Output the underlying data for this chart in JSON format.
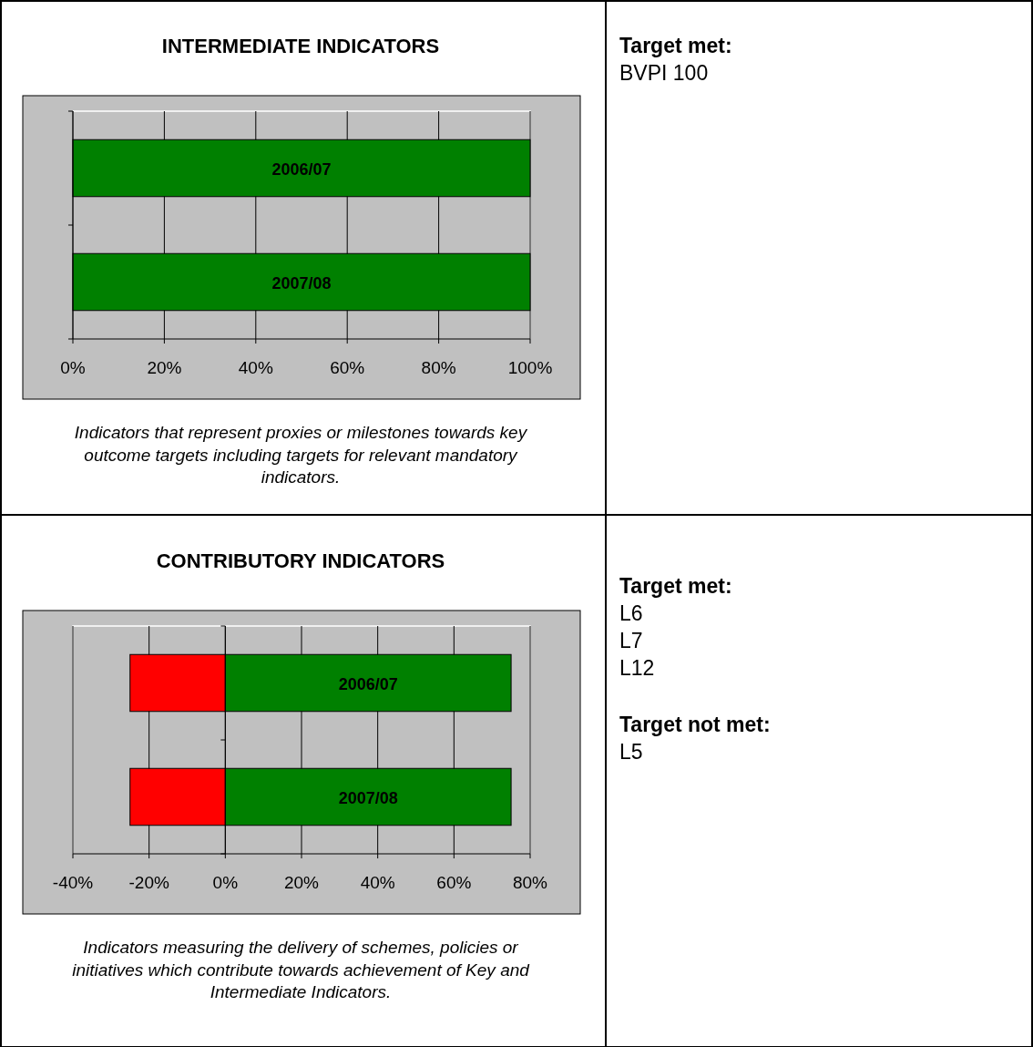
{
  "chart_data": [
    {
      "type": "bar",
      "orientation": "horizontal",
      "title": "INTERMEDIATE INDICATORS",
      "categories": [
        "2006/07",
        "2007/08"
      ],
      "series": [
        {
          "color": "#008000",
          "values": [
            100,
            100
          ]
        }
      ],
      "xlim": [
        0,
        100
      ],
      "xticks": [
        {
          "value": 0,
          "label": "0%"
        },
        {
          "value": 20,
          "label": "20%"
        },
        {
          "value": 40,
          "label": "40%"
        },
        {
          "value": 60,
          "label": "60%"
        },
        {
          "value": 80,
          "label": "80%"
        },
        {
          "value": 100,
          "label": "100%"
        }
      ],
      "grid": "x",
      "annotations": [
        "Indicators that represent proxies or milestones towards key outcome targets including targets for relevant mandatory indicators."
      ]
    },
    {
      "type": "other",
      "title": "Target met:",
      "annotations": [
        "BVPI 100"
      ]
    },
    {
      "type": "bar",
      "orientation": "horizontal",
      "stacked": true,
      "title": "CONTRIBUTORY INDICATORS",
      "categories": [
        "2006/07",
        "2007/08"
      ],
      "series": [
        {
          "color": "#ff0000",
          "values": [
            -25,
            -25
          ]
        },
        {
          "color": "#008000",
          "values": [
            75,
            75
          ]
        }
      ],
      "xlim": [
        -40,
        80
      ],
      "xticks": [
        {
          "value": -40,
          "label": "-40%"
        },
        {
          "value": -20,
          "label": "-20%"
        },
        {
          "value": 0,
          "label": "0%"
        },
        {
          "value": 20,
          "label": "20%"
        },
        {
          "value": 40,
          "label": "40%"
        },
        {
          "value": 60,
          "label": "60%"
        },
        {
          "value": 80,
          "label": "80%"
        }
      ],
      "grid": "x",
      "annotations": [
        "Indicators measuring the delivery of schemes, policies or initiatives which contribute towards achievement of Key and Intermediate Indicators."
      ]
    },
    {
      "type": "other",
      "title": "Target met:",
      "annotations": [
        "L6",
        "L7",
        "L12"
      ]
    },
    {
      "type": "other",
      "title": "Target not met:",
      "annotations": [
        "L5"
      ]
    }
  ]
}
